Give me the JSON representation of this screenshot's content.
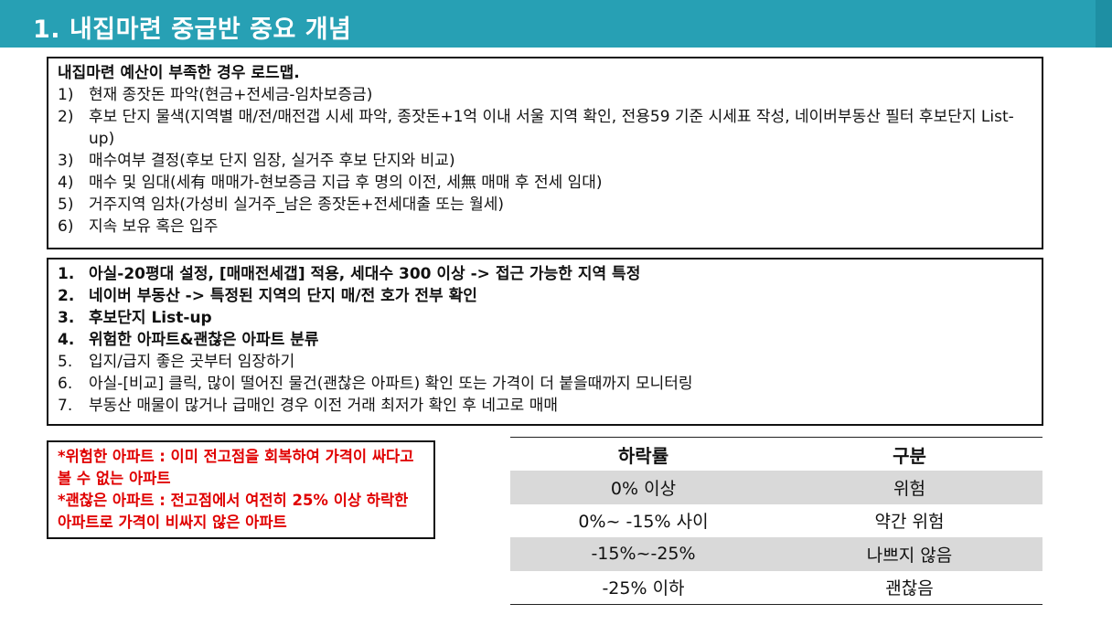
{
  "header": {
    "title": "1. 내집마련 중급반 중요 개념"
  },
  "roadmap": {
    "heading": "내집마련 예산이 부족한 경우 로드맵.",
    "items": [
      {
        "num": "1)",
        "text": "현재 종잣돈 파악(현금+전세금-임차보증금)"
      },
      {
        "num": "2)",
        "text": "후보 단지 물색(지역별 매/전/매전갭 시세 파악, 종잣돈+1억 이내 서울 지역 확인, 전용59 기준 시세표 작성, 네이버부동산 필터 후보단지 List-up)"
      },
      {
        "num": "3)",
        "text": "매수여부 결정(후보 단지 임장, 실거주 후보 단지와 비교)"
      },
      {
        "num": "4)",
        "text": "매수 및 임대(세有 매매가-현보증금 지급 후 명의 이전, 세無 매매 후 전세 임대)"
      },
      {
        "num": "5)",
        "text": "거주지역 임차(가성비 실거주_남은 종잣돈+전세대출 또는 월세)"
      },
      {
        "num": "6)",
        "text": "지속 보유 혹은 입주"
      }
    ]
  },
  "steps": {
    "items": [
      {
        "num": "1.",
        "text": "아실-20평대 설정, [매매전세갭] 적용, 세대수 300 이상 -> 접근 가능한 지역 특정"
      },
      {
        "num": "2.",
        "text": "네이버 부동산 -> 특정된 지역의 단지 매/전 호가 전부 확인"
      },
      {
        "num": "3.",
        "text": "후보단지 List-up"
      },
      {
        "num": "4.",
        "text": "위험한 아파트&괜찮은 아파트 분류"
      },
      {
        "num": "5.",
        "text": "입지/급지 좋은 곳부터 임장하기"
      },
      {
        "num": "6.",
        "text": "아실-[비교] 클릭, 많이 떨어진 물건(괜찮은 아파트) 확인 또는 가격이 더 붙을때까지 모니터링"
      },
      {
        "num": "7.",
        "text": "부동산 매물이 많거나 급매인 경우 이전 거래 최저가 확인 후 네고로 매매"
      }
    ]
  },
  "note": {
    "line1": "*위험한 아파트 : 이미 전고점을 회복하여 가격이 싸다고 볼 수 없는 아파트",
    "line2": "*괜찮은 아파트 : 전고점에서 여전히 25% 이상 하락한 아파트로 가격이 비싸지 않은 아파트"
  },
  "table": {
    "headers": [
      "하락률",
      "구분"
    ],
    "rows": [
      [
        "0% 이상",
        "위험"
      ],
      [
        "0%~ -15% 사이",
        "약간 위험"
      ],
      [
        "-15%~-25%",
        "나쁘지 않음"
      ],
      [
        "-25% 이하",
        "괜찮음"
      ]
    ]
  }
}
